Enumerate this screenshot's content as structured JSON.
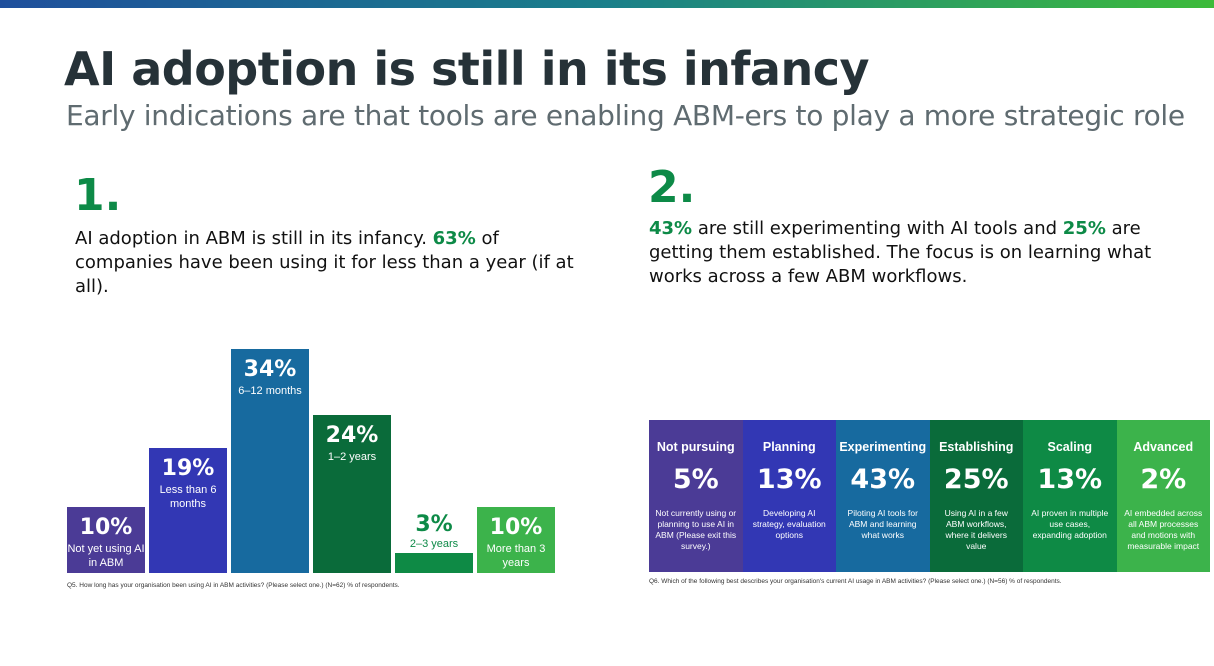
{
  "colors": {
    "purple": "#4b3b96",
    "indigo": "#3237b4",
    "blue": "#176a9f",
    "darkgreen": "#0a6b3a",
    "green": "#0e8a45",
    "lightgreen": "#3cb34b"
  },
  "header": {
    "title": "AI adoption is still in its infancy",
    "subtitle": "Early indications are that tools are enabling ABM-ers to play a more strategic role"
  },
  "section1": {
    "number": "1.",
    "text_a": "AI adoption in ABM is still in its infancy. ",
    "highlight": "63%",
    "text_b": " of companies have been using it for less than a year (if at all)."
  },
  "section2": {
    "number": "2.",
    "hl1": "43%",
    "text_a": " are still experimenting with AI tools and ",
    "hl2": "25%",
    "text_b": " are getting them established. The focus is on learning what works across a few ABM workflows."
  },
  "chart_data": [
    {
      "type": "bar",
      "title": "",
      "categories": [
        "Not yet using AI in ABM",
        "Less than 6 months",
        "6–12 months",
        "1–2 years",
        "2–3 years",
        "More than 3 years"
      ],
      "labels": [
        "10%",
        "19%",
        "34%",
        "24%",
        "3%",
        "10%"
      ],
      "values": [
        10,
        19,
        34,
        24,
        3,
        10
      ],
      "ylim": [
        0,
        34
      ],
      "note": "Q5. How long has your organisation been using AI in ABM activities? (Please select one.) (N=62) % of respondents."
    },
    {
      "type": "table",
      "stages": [
        {
          "name": "Not pursuing",
          "pct": "5%",
          "value": 5,
          "desc": "Not currently using or planning to use AI in ABM (Please exit this survey.)"
        },
        {
          "name": "Planning",
          "pct": "13%",
          "value": 13,
          "desc": "Developing AI strategy, evaluation options"
        },
        {
          "name": "Experimenting",
          "pct": "43%",
          "value": 43,
          "desc": "Piloting AI tools for ABM and learning what works"
        },
        {
          "name": "Establishing",
          "pct": "25%",
          "value": 25,
          "desc": "Using AI in a few ABM workflows, where it delivers value"
        },
        {
          "name": "Scaling",
          "pct": "13%",
          "value": 13,
          "desc": "AI proven in multiple use cases, expanding adoption"
        },
        {
          "name": "Advanced",
          "pct": "2%",
          "value": 2,
          "desc": "AI embedded across all ABM processes and motions with measurable impact"
        }
      ],
      "note": "Q6. Which of the following best describes your organisation's current AI usage in ABM activities? (Please select one.) (N=56) % of respondents."
    }
  ]
}
